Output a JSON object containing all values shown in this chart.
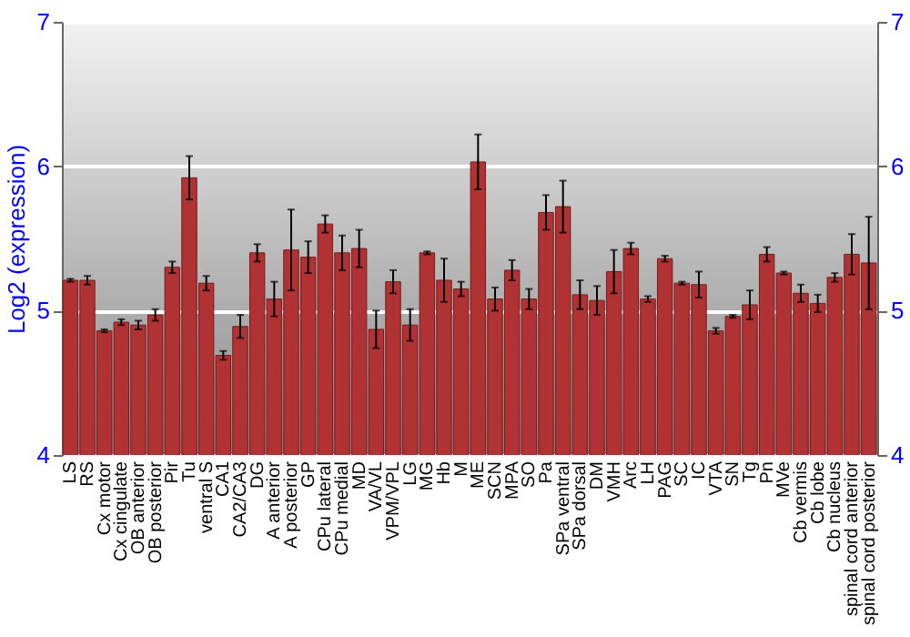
{
  "chart_data": {
    "type": "bar",
    "ylabel": "Log2 (expression)",
    "categories": [
      "LS",
      "RS",
      "Cx motor",
      "Cx cingulate",
      "OB anterior",
      "OB posterior",
      "Pir",
      "Tu",
      "ventral S",
      "CA1",
      "CA2/CA3",
      "DG",
      "A anterior",
      "A posterior",
      "GP",
      "CPu lateral",
      "CPu medial",
      "MD",
      "VA/VL",
      "VPM/VPL",
      "LG",
      "MG",
      "Hb",
      "M",
      "ME",
      "SCN",
      "MPA",
      "SO",
      "Pa",
      "SPa ventral",
      "SPa dorsal",
      "DM",
      "VMH",
      "Arc",
      "LH",
      "PAG",
      "SC",
      "IC",
      "VTA",
      "SN",
      "Tg",
      "Pn",
      "MVe",
      "Cb vermis",
      "Cb lobe",
      "Cb nucleus",
      "spinal cord anterior",
      "spinal cord posterior"
    ],
    "values": [
      5.21,
      5.21,
      4.86,
      4.92,
      4.9,
      4.97,
      5.3,
      5.92,
      5.19,
      4.69,
      4.89,
      5.4,
      5.08,
      5.42,
      5.37,
      5.6,
      5.4,
      5.43,
      4.87,
      5.2,
      4.9,
      5.4,
      5.21,
      5.15,
      6.03,
      5.08,
      5.28,
      5.08,
      5.68,
      5.72,
      5.11,
      5.07,
      5.27,
      5.43,
      5.08,
      5.36,
      5.19,
      5.18,
      4.86,
      4.96,
      5.04,
      5.39,
      5.26,
      5.12,
      5.05,
      5.23,
      5.39,
      5.33
    ],
    "errors": [
      0.01,
      0.03,
      0.01,
      0.02,
      0.03,
      0.04,
      0.04,
      0.15,
      0.05,
      0.03,
      0.08,
      0.06,
      0.12,
      0.28,
      0.11,
      0.06,
      0.12,
      0.13,
      0.13,
      0.08,
      0.11,
      0.01,
      0.15,
      0.05,
      0.19,
      0.08,
      0.07,
      0.07,
      0.12,
      0.18,
      0.1,
      0.1,
      0.15,
      0.04,
      0.02,
      0.02,
      0.01,
      0.09,
      0.02,
      0.01,
      0.1,
      0.05,
      0.01,
      0.06,
      0.06,
      0.03,
      0.14,
      0.32
    ],
    "color": "#b03232",
    "ylim": [
      4,
      7
    ],
    "yticks": [
      4,
      5,
      6,
      7
    ],
    "y2lim": [
      4,
      7
    ],
    "y2ticks": [
      4,
      5,
      6,
      7
    ],
    "grid": "y"
  }
}
